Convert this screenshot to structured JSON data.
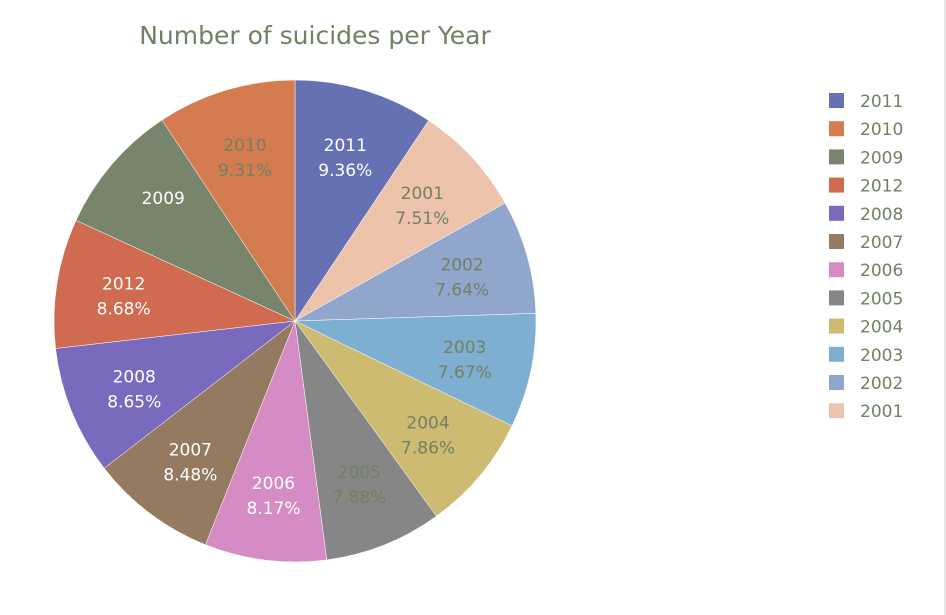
{
  "chart_data": {
    "type": "pie",
    "title": "Number of suicides per Year",
    "start_angle_deg": 0,
    "direction": "clockwise",
    "legend_position": "right",
    "slices": [
      {
        "label": "2011",
        "percent_label": "9.36%",
        "value": 9.36,
        "color": "#6571b2",
        "text_color": "#ffffff"
      },
      {
        "label": "2001",
        "percent_label": "7.51%",
        "value": 7.51,
        "color": "#edc3ab",
        "text_color": "#728063"
      },
      {
        "label": "2002",
        "percent_label": "7.64%",
        "value": 7.64,
        "color": "#91a6cd",
        "text_color": "#728063"
      },
      {
        "label": "2003",
        "percent_label": "7.67%",
        "value": 7.67,
        "color": "#7eafd1",
        "text_color": "#728063"
      },
      {
        "label": "2004",
        "percent_label": "7.86%",
        "value": 7.86,
        "color": "#ccbb71",
        "text_color": "#728063"
      },
      {
        "label": "2005",
        "percent_label": "7.88%",
        "value": 7.88,
        "color": "#868686",
        "text_color": "#728063"
      },
      {
        "label": "2006",
        "percent_label": "8.17%",
        "value": 8.17,
        "color": "#d58cc4",
        "text_color": "#ffffff"
      },
      {
        "label": "2007",
        "percent_label": "8.48%",
        "value": 8.48,
        "color": "#937a60",
        "text_color": "#ffffff"
      },
      {
        "label": "2008",
        "percent_label": "8.65%",
        "value": 8.65,
        "color": "#7a6abd",
        "text_color": "#ffffff"
      },
      {
        "label": "2012",
        "percent_label": "8.68%",
        "value": 8.68,
        "color": "#d06a50",
        "text_color": "#ffffff"
      },
      {
        "label": "2009",
        "percent_label": "",
        "value": 8.84,
        "color": "#78856c",
        "text_color": "#ffffff"
      },
      {
        "label": "2010",
        "percent_label": "9.31%",
        "value": 9.31,
        "color": "#d47b4f",
        "text_color": "#728063"
      }
    ],
    "legend": [
      {
        "label": "2011",
        "color": "#6571b2"
      },
      {
        "label": "2010",
        "color": "#d47b4f"
      },
      {
        "label": "2009",
        "color": "#78856c"
      },
      {
        "label": "2012",
        "color": "#d06a50"
      },
      {
        "label": "2008",
        "color": "#7a6abd"
      },
      {
        "label": "2007",
        "color": "#937a60"
      },
      {
        "label": "2006",
        "color": "#d58cc4"
      },
      {
        "label": "2005",
        "color": "#868686"
      },
      {
        "label": "2004",
        "color": "#ccbb71"
      },
      {
        "label": "2003",
        "color": "#7eafd1"
      },
      {
        "label": "2002",
        "color": "#91a6cd"
      },
      {
        "label": "2001",
        "color": "#edc3ab"
      }
    ],
    "title_color": "#728063",
    "legend_text_color": "#728063"
  }
}
